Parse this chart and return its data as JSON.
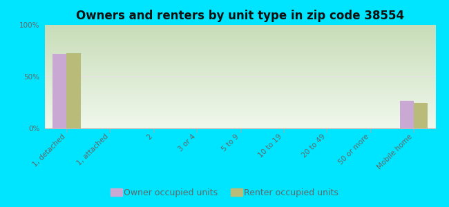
{
  "title": "Owners and renters by unit type in zip code 38554",
  "categories": [
    "1, detached",
    "1, attached",
    "2",
    "3 or 4",
    "5 to 9",
    "10 to 19",
    "20 to 49",
    "50 or more",
    "Mobile home"
  ],
  "owner_values": [
    72,
    0,
    0,
    0,
    0,
    0,
    0,
    0,
    27
  ],
  "renter_values": [
    73,
    0,
    0,
    0,
    0,
    0,
    0,
    0,
    25
  ],
  "owner_color": "#c9a8d4",
  "renter_color": "#b8bc78",
  "figure_bg": "#00e5ff",
  "plot_bg_top": "#c8ddb8",
  "plot_bg_bottom": "#f0f8ec",
  "ymin": 0,
  "ymax": 100,
  "yticks": [
    0,
    50,
    100
  ],
  "ytick_labels": [
    "0%",
    "50%",
    "100%"
  ],
  "bar_width": 0.32,
  "legend_owner": "Owner occupied units",
  "legend_renter": "Renter occupied units",
  "title_fontsize": 12,
  "tick_fontsize": 7.5,
  "legend_fontsize": 9,
  "hline50_color": "#e8e0e8",
  "axis_label_color": "#666666"
}
